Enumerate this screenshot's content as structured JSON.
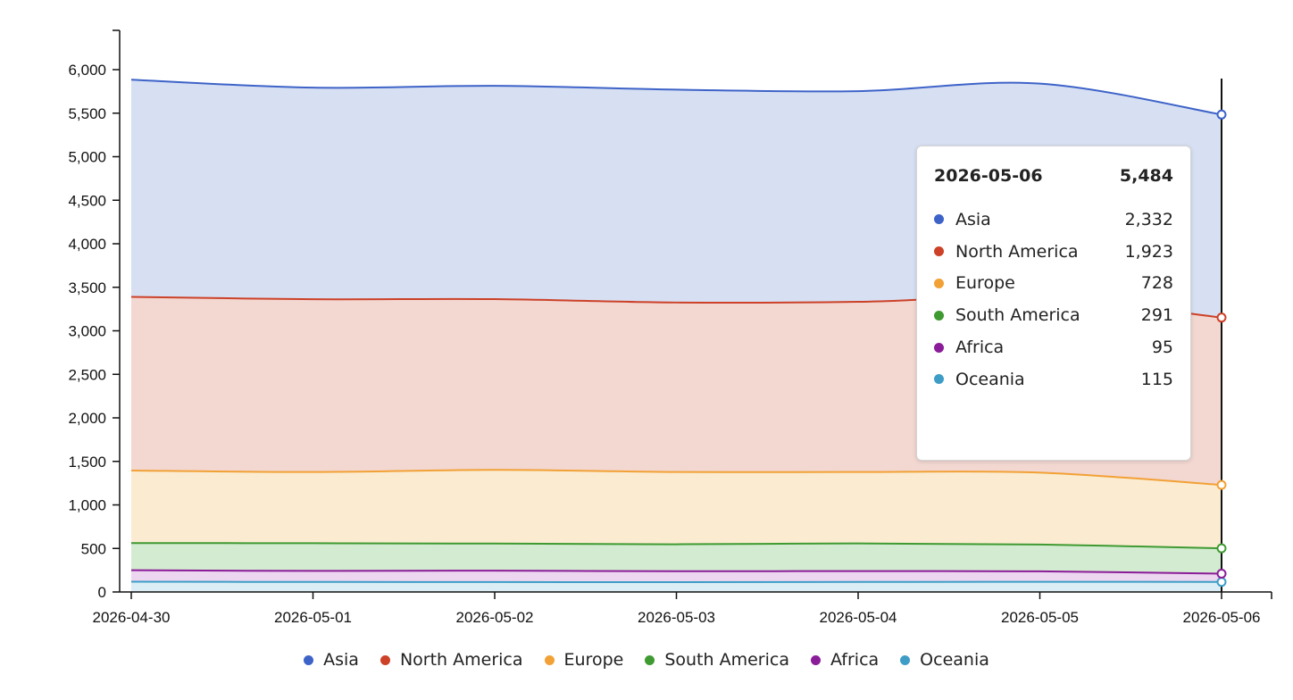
{
  "chart_data": {
    "type": "area",
    "stacked": true,
    "title": "",
    "xlabel": "",
    "ylabel": "",
    "x": [
      "2026-04-30",
      "2026-05-01",
      "2026-05-02",
      "2026-05-03",
      "2026-05-04",
      "2026-05-05",
      "2026-05-06"
    ],
    "y_ticks": [
      "0",
      "500",
      "1,000",
      "1,500",
      "2,000",
      "2,500",
      "3,000",
      "3,500",
      "4,000",
      "4,500",
      "5,000",
      "5,500",
      "6,000"
    ],
    "ylim": [
      0,
      6500
    ],
    "grid": false,
    "legend_position": "bottom",
    "series": [
      {
        "name": "Oceania",
        "color": "#3e9dc6",
        "fill": "#dbeef6",
        "values": [
          118,
          115,
          114,
          113,
          115,
          117,
          115
        ]
      },
      {
        "name": "Africa",
        "color": "#8b1c99",
        "fill": "#ecd6f0",
        "values": [
          132,
          127,
          131,
          125,
          125,
          120,
          95
        ]
      },
      {
        "name": "South America",
        "color": "#3f9a32",
        "fill": "#d3ebd0",
        "values": [
          312,
          318,
          311,
          310,
          318,
          308,
          291
        ]
      },
      {
        "name": "Europe",
        "color": "#f2a136",
        "fill": "#fbecd1",
        "values": [
          833,
          818,
          846,
          830,
          820,
          826,
          728
        ]
      },
      {
        "name": "North America",
        "color": "#cc4128",
        "fill": "#f3d7d1",
        "values": [
          1995,
          1985,
          1962,
          1947,
          1955,
          2012,
          1923
        ]
      },
      {
        "name": "Asia",
        "color": "#3e63c8",
        "fill": "#d7e0f3",
        "values": [
          2495,
          2430,
          2450,
          2445,
          2420,
          2457,
          2332
        ]
      }
    ],
    "tooltip": {
      "date": "2026-05-06",
      "total": "5,484",
      "rows": [
        {
          "name": "Asia",
          "value": "2,332",
          "color": "#3e63c8"
        },
        {
          "name": "North America",
          "value": "1,923",
          "color": "#cc4128"
        },
        {
          "name": "Europe",
          "value": "728",
          "color": "#f2a136"
        },
        {
          "name": "South America",
          "value": "291",
          "color": "#3f9a32"
        },
        {
          "name": "Africa",
          "value": "95",
          "color": "#8b1c99"
        },
        {
          "name": "Oceania",
          "value": "115",
          "color": "#3e9dc6"
        }
      ]
    },
    "legend": [
      {
        "name": "Asia",
        "color": "#3e63c8"
      },
      {
        "name": "North America",
        "color": "#cc4128"
      },
      {
        "name": "Europe",
        "color": "#f2a136"
      },
      {
        "name": "South America",
        "color": "#3f9a32"
      },
      {
        "name": "Africa",
        "color": "#8b1c99"
      },
      {
        "name": "Oceania",
        "color": "#3e9dc6"
      }
    ]
  }
}
